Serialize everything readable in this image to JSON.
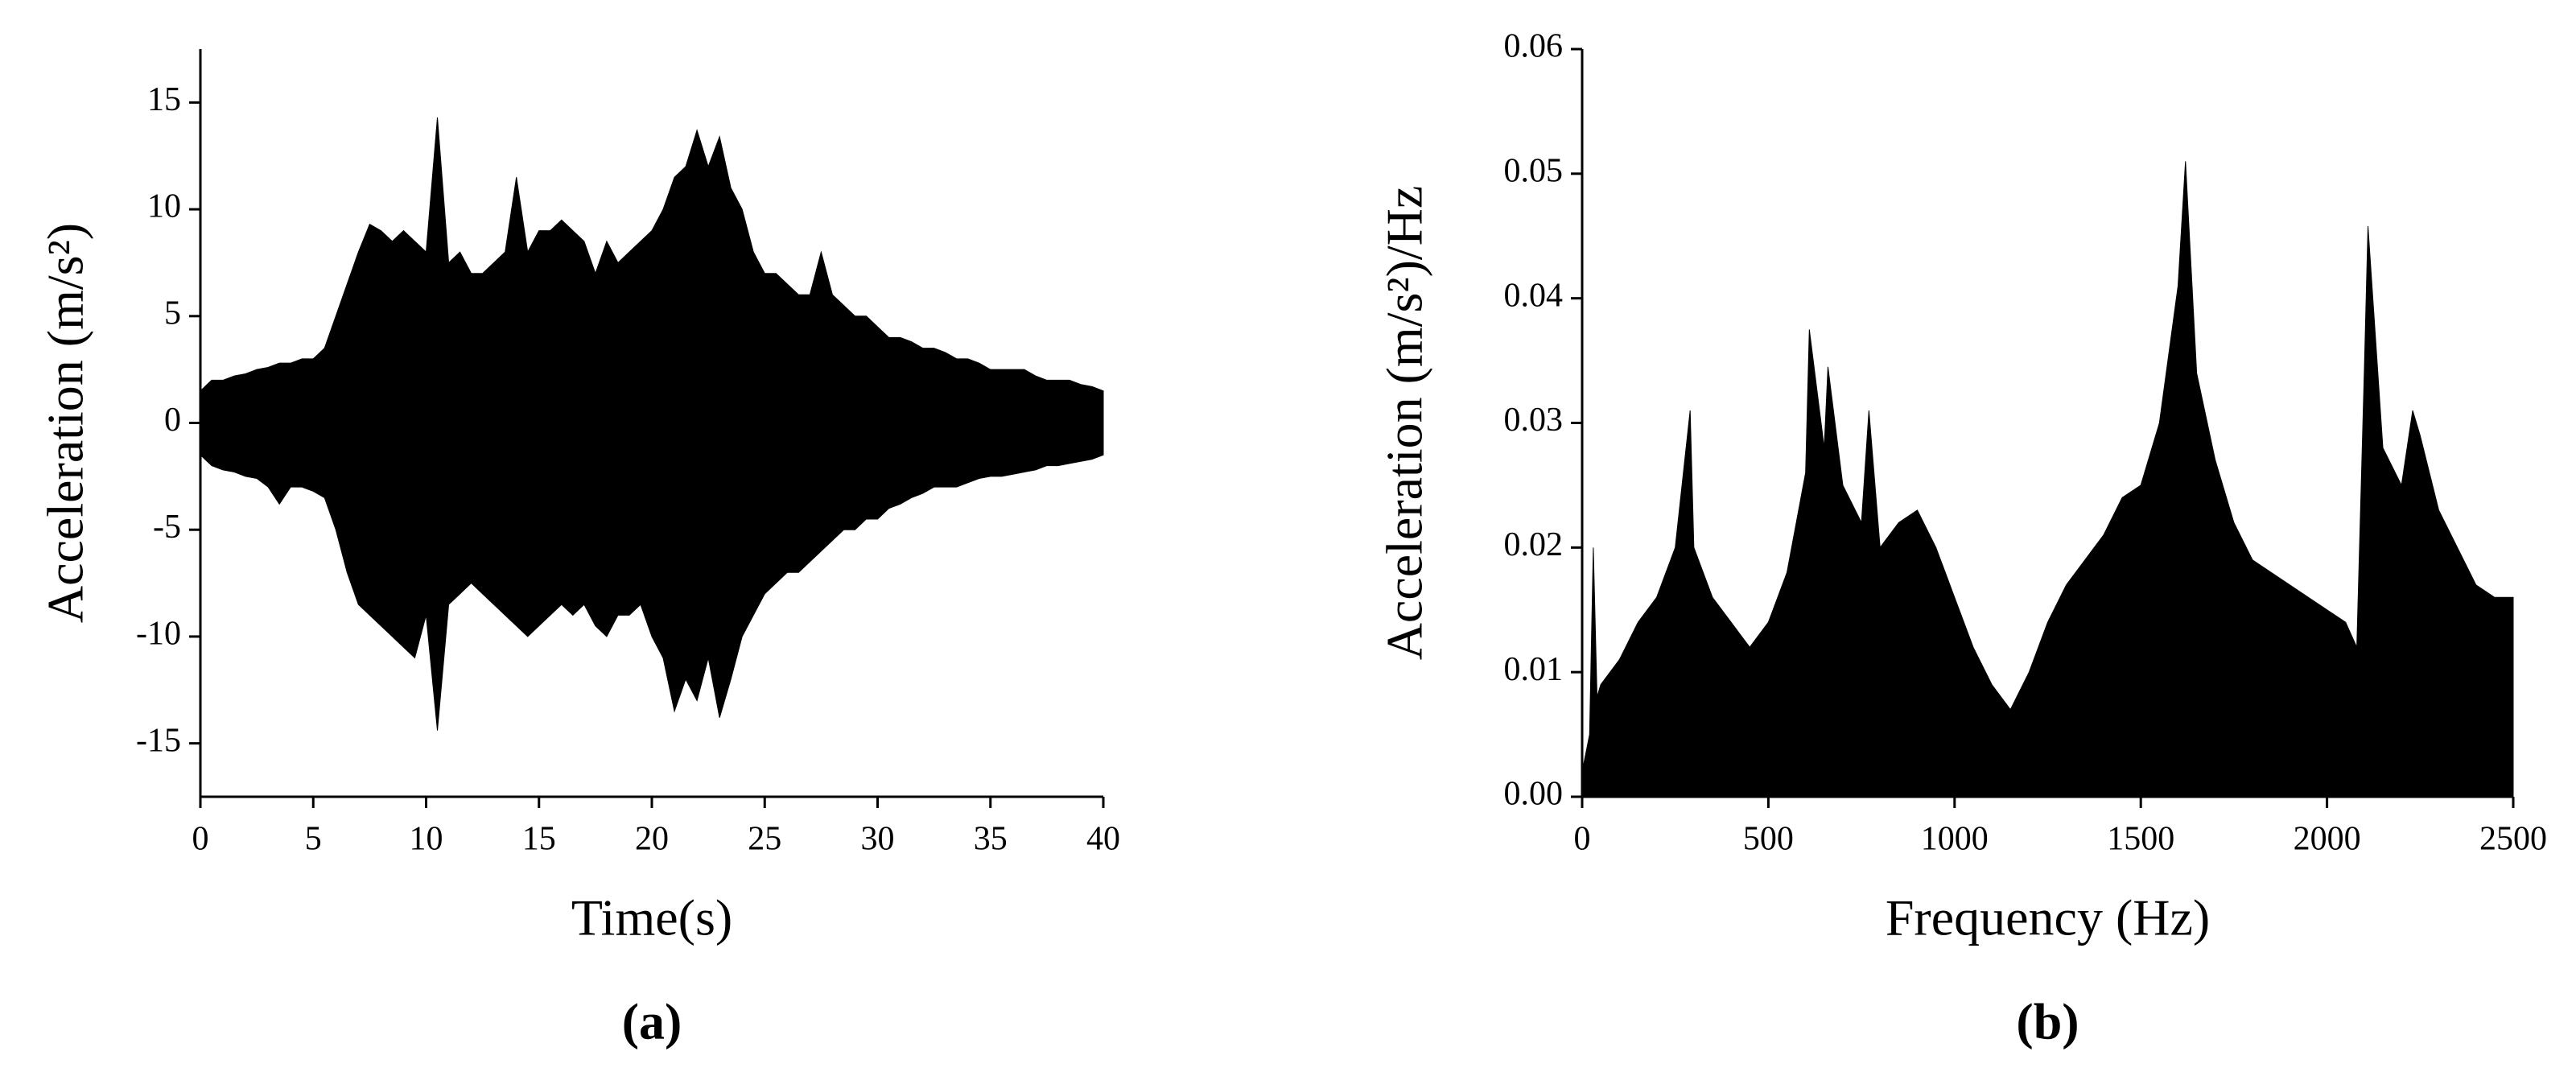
{
  "chart_data": [
    {
      "type": "area",
      "caption": "(a)",
      "xlabel": "Time(s)",
      "ylabel": "Acceleration (m/s²)",
      "xlim": [
        0,
        40
      ],
      "ylim": [
        -17.5,
        17.5
      ],
      "xticks": [
        0,
        5,
        10,
        15,
        20,
        25,
        30,
        35,
        40
      ],
      "yticks": [
        -15,
        -10,
        -5,
        0,
        5,
        10,
        15
      ],
      "x": [
        0,
        0.5,
        1,
        1.5,
        2,
        2.5,
        3,
        3.5,
        4,
        4.5,
        5,
        5.5,
        6,
        6.5,
        7,
        7.5,
        8,
        8.5,
        9,
        9.5,
        10,
        10.5,
        11,
        11.5,
        12,
        12.5,
        13,
        13.5,
        14,
        14.5,
        15,
        15.5,
        16,
        16.5,
        17,
        17.5,
        18,
        18.5,
        19,
        19.5,
        20,
        20.5,
        21,
        21.5,
        22,
        22.5,
        23,
        23.5,
        24,
        24.5,
        25,
        25.5,
        26,
        26.5,
        27,
        27.5,
        28,
        28.5,
        29,
        29.5,
        30,
        30.5,
        31,
        31.5,
        32,
        32.5,
        33,
        33.5,
        34,
        34.5,
        35,
        35.5,
        36,
        36.5,
        37,
        37.5,
        38,
        38.5,
        39,
        39.5,
        40
      ],
      "series": [
        {
          "color": "#000000",
          "values": [
            1.5,
            2,
            2,
            2.2,
            2.3,
            2.5,
            2.6,
            2.8,
            2.8,
            3,
            3,
            3.5,
            5,
            6.5,
            8,
            9.3,
            9,
            8.5,
            9,
            8.5,
            8,
            14.3,
            7.5,
            8,
            7,
            7,
            7.5,
            8,
            11.5,
            8,
            9,
            9,
            9.5,
            9,
            8.5,
            7,
            8.5,
            7.5,
            8,
            8.5,
            9,
            10,
            11.5,
            12,
            13.7,
            12,
            13.4,
            11,
            10,
            8,
            7,
            7,
            6.5,
            6,
            6,
            8,
            6,
            5.5,
            5,
            5,
            4.5,
            4,
            4,
            3.8,
            3.5,
            3.5,
            3.3,
            3,
            3,
            2.8,
            2.5,
            2.5,
            2.5,
            2.5,
            2.2,
            2,
            2,
            2,
            1.8,
            1.7,
            1.5
          ]
        },
        {
          "color": "#000000",
          "values": [
            -1.5,
            -2,
            -2.2,
            -2.3,
            -2.5,
            -2.6,
            -3,
            -3.8,
            -3,
            -3,
            -3.2,
            -3.5,
            -5,
            -7,
            -8.5,
            -9,
            -9.5,
            -10,
            -10.5,
            -11,
            -9,
            -14.4,
            -8.5,
            -8,
            -7.5,
            -8,
            -8.5,
            -9,
            -9.5,
            -10,
            -9.5,
            -9,
            -8.5,
            -9,
            -8.5,
            -9.5,
            -10,
            -9,
            -9,
            -8.5,
            -10,
            -11,
            -13.5,
            -12,
            -13,
            -11,
            -13.8,
            -12,
            -10,
            -9,
            -8,
            -7.5,
            -7,
            -7,
            -6.5,
            -6,
            -5.5,
            -5,
            -5,
            -4.5,
            -4.5,
            -4,
            -3.8,
            -3.5,
            -3.3,
            -3,
            -3,
            -3,
            -2.8,
            -2.6,
            -2.5,
            -2.5,
            -2.4,
            -2.3,
            -2.2,
            -2,
            -2,
            -1.9,
            -1.8,
            -1.7,
            -1.5
          ]
        }
      ]
    },
    {
      "type": "area",
      "caption": "(b)",
      "xlabel": "Frequency (Hz)",
      "ylabel": "Acceleration (m/s²)/Hz",
      "xlim": [
        0,
        2500
      ],
      "ylim": [
        0,
        0.06
      ],
      "xticks": [
        0,
        500,
        1000,
        1500,
        2000,
        2500
      ],
      "yticks": [
        {
          "value": 0,
          "label": "0.00"
        },
        {
          "value": 0.01,
          "label": "0.01"
        },
        {
          "value": 0.02,
          "label": "0.02"
        },
        {
          "value": 0.03,
          "label": "0.03"
        },
        {
          "value": 0.04,
          "label": "0.04"
        },
        {
          "value": 0.05,
          "label": "0.05"
        },
        {
          "value": 0.06,
          "label": "0.06"
        }
      ],
      "x": [
        0,
        20,
        30,
        40,
        50,
        100,
        150,
        200,
        250,
        290,
        300,
        350,
        400,
        450,
        500,
        550,
        600,
        610,
        650,
        660,
        700,
        750,
        770,
        800,
        850,
        900,
        950,
        1000,
        1050,
        1100,
        1150,
        1200,
        1250,
        1300,
        1350,
        1400,
        1450,
        1500,
        1550,
        1600,
        1620,
        1650,
        1700,
        1750,
        1800,
        1850,
        1900,
        1950,
        2000,
        2050,
        2080,
        2100,
        2110,
        2150,
        2200,
        2230,
        2250,
        2300,
        2350,
        2400,
        2450,
        2500
      ],
      "series": [
        {
          "color": "#000000",
          "values": [
            0.002,
            0.005,
            0.02,
            0.008,
            0.009,
            0.011,
            0.014,
            0.016,
            0.02,
            0.031,
            0.02,
            0.016,
            0.014,
            0.012,
            0.014,
            0.018,
            0.026,
            0.0375,
            0.028,
            0.0345,
            0.025,
            0.022,
            0.031,
            0.02,
            0.022,
            0.023,
            0.02,
            0.016,
            0.012,
            0.009,
            0.007,
            0.01,
            0.014,
            0.017,
            0.019,
            0.021,
            0.024,
            0.025,
            0.03,
            0.041,
            0.051,
            0.034,
            0.027,
            0.022,
            0.019,
            0.018,
            0.017,
            0.016,
            0.015,
            0.014,
            0.012,
            0.034,
            0.0458,
            0.028,
            0.025,
            0.031,
            0.029,
            0.023,
            0.02,
            0.017,
            0.016,
            0.016
          ]
        }
      ]
    }
  ]
}
